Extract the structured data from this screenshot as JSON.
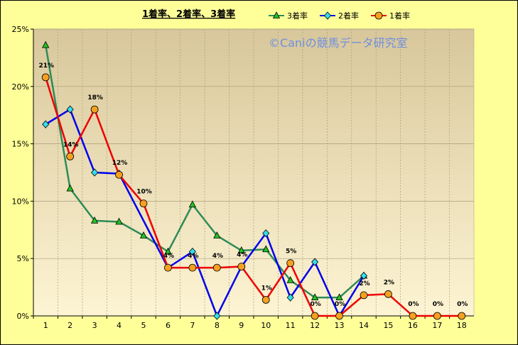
{
  "chart_data": {
    "type": "line",
    "title": "1着率、2着率、3着率",
    "watermark": "©Caniの競馬データ研究室",
    "categories": [
      "1",
      "2",
      "3",
      "4",
      "5",
      "6",
      "7",
      "8",
      "9",
      "10",
      "11",
      "12",
      "13",
      "14",
      "15",
      "16",
      "17",
      "18"
    ],
    "ylim": [
      0,
      25
    ],
    "yticks": [
      "0%",
      "5%",
      "10%",
      "15%",
      "20%",
      "25%"
    ],
    "grid": true,
    "legend_position": "top",
    "colors": {
      "background": "#ffff99",
      "plot_top": "#d8c79b",
      "plot_bottom": "#fdf4d3",
      "grid": "#a89f7a"
    },
    "series": [
      {
        "name": "3着率",
        "color": "#2e8b57",
        "marker": "triangle",
        "marker_fill": "#22c022",
        "values": [
          23.6,
          11.1,
          8.3,
          8.2,
          7.0,
          5.6,
          9.7,
          7.0,
          5.7,
          5.8,
          3.1,
          1.6,
          1.6,
          3.5,
          null,
          null,
          null,
          null
        ]
      },
      {
        "name": "2着率",
        "color": "#0000ee",
        "marker": "diamond",
        "marker_fill": "#33ddee",
        "values": [
          16.7,
          18.0,
          12.5,
          12.4,
          null,
          4.2,
          5.6,
          0.0,
          4.3,
          7.2,
          1.6,
          4.7,
          0.0,
          3.5,
          null,
          null,
          null,
          null
        ]
      },
      {
        "name": "1着率",
        "color": "#ee0000",
        "marker": "circle",
        "marker_fill": "#f5a020",
        "values": [
          20.8,
          13.9,
          18.0,
          12.3,
          9.8,
          4.2,
          4.2,
          4.2,
          4.3,
          1.4,
          4.6,
          0.0,
          0.0,
          1.8,
          1.9,
          0.0,
          0.0,
          0.0
        ],
        "data_labels": [
          "21%",
          "14%",
          "18%",
          "12%",
          "10%",
          "4%",
          "4%",
          "4%",
          "4%",
          "1%",
          "5%",
          "0%",
          "0%",
          "2%",
          "2%",
          "0%",
          "0%",
          "0%"
        ]
      }
    ]
  }
}
